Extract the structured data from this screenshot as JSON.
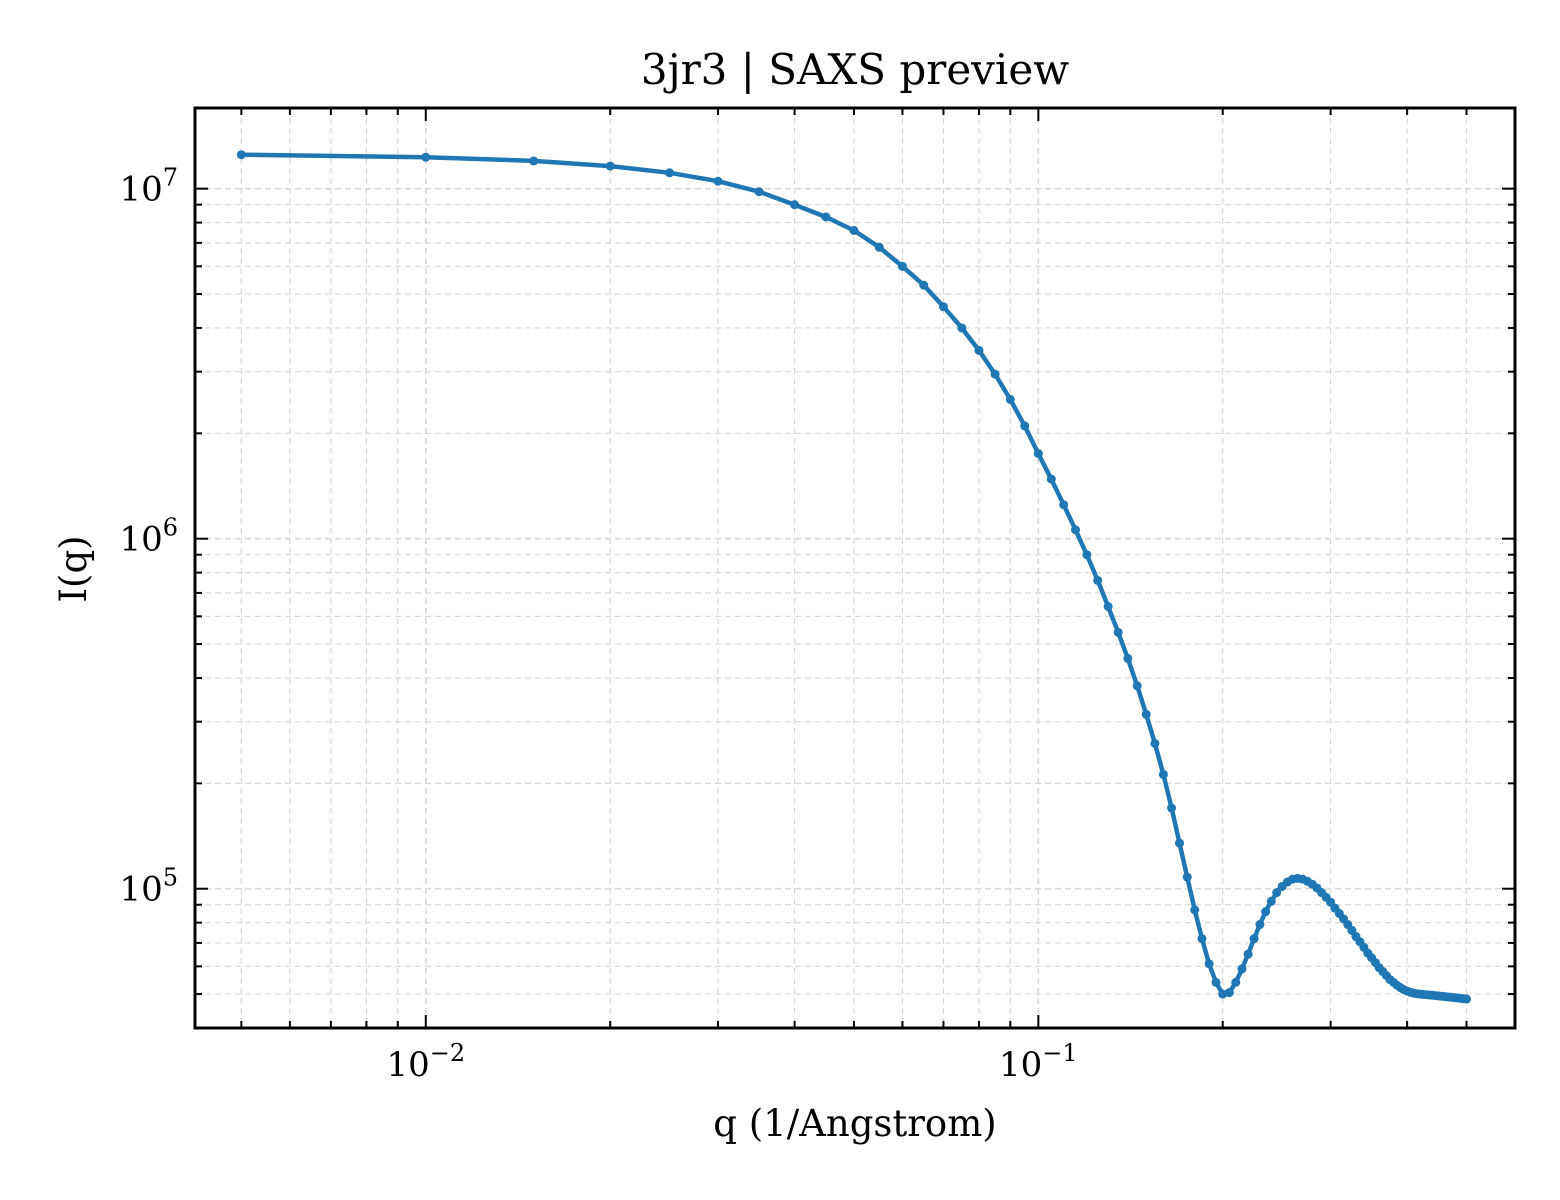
{
  "chart_data": {
    "type": "line",
    "title": "3jr3 | SAXS preview",
    "xlabel": "q (1/Angstrom)",
    "ylabel": "I(q)",
    "xscale": "log",
    "yscale": "log",
    "xlim": [
      0.0042,
      0.6
    ],
    "ylim": [
      40000,
      17000000
    ],
    "grid": true,
    "x_ticks": [
      {
        "value": 0.01,
        "base": "10",
        "exp": "−2"
      },
      {
        "value": 0.1,
        "base": "10",
        "exp": "−1"
      }
    ],
    "y_ticks": [
      {
        "value": 100000,
        "base": "10",
        "exp": "5"
      },
      {
        "value": 1000000,
        "base": "10",
        "exp": "6"
      },
      {
        "value": 10000000,
        "base": "10",
        "exp": "7"
      }
    ],
    "series": [
      {
        "color": "#1f77b4",
        "marker": "dot",
        "x": [
          0.005,
          0.01,
          0.015,
          0.02,
          0.025,
          0.03,
          0.035,
          0.04,
          0.045,
          0.05,
          0.055,
          0.06,
          0.065,
          0.07,
          0.075,
          0.08,
          0.085,
          0.09,
          0.095,
          0.1,
          0.105,
          0.11,
          0.115,
          0.12,
          0.125,
          0.13,
          0.135,
          0.14,
          0.145,
          0.15,
          0.155,
          0.16,
          0.165,
          0.17,
          0.175,
          0.18,
          0.185,
          0.19,
          0.195,
          0.2,
          0.205,
          0.21,
          0.215,
          0.22,
          0.225,
          0.23,
          0.235,
          0.24,
          0.245,
          0.25,
          0.255,
          0.26,
          0.265,
          0.27,
          0.275,
          0.28,
          0.285,
          0.29,
          0.295,
          0.3,
          0.305,
          0.31,
          0.315,
          0.32,
          0.325,
          0.33,
          0.335,
          0.34,
          0.345,
          0.35,
          0.355,
          0.36,
          0.365,
          0.37,
          0.375,
          0.38,
          0.385,
          0.39,
          0.395,
          0.4,
          0.405,
          0.41,
          0.415,
          0.42,
          0.425,
          0.43,
          0.435,
          0.44,
          0.445,
          0.45,
          0.455,
          0.46,
          0.465,
          0.47,
          0.475,
          0.48,
          0.485,
          0.49,
          0.495,
          0.5
        ],
        "y": [
          12500000,
          12300000,
          12000000,
          11600000,
          11100000,
          10500000,
          9800000,
          9000000,
          8300000,
          7600000,
          6800000,
          6000000,
          5300000,
          4600000,
          4000000,
          3450000,
          2950000,
          2500000,
          2100000,
          1750000,
          1480000,
          1250000,
          1060000,
          900000,
          760000,
          640000,
          540000,
          455000,
          380000,
          315000,
          260000,
          212000,
          170000,
          135000,
          108000,
          87000,
          72000,
          61000,
          54000,
          50000,
          50500,
          54000,
          59000,
          65000,
          72000,
          79000,
          86000,
          92000,
          97500,
          101500,
          104500,
          106500,
          107000,
          106500,
          105000,
          103000,
          100500,
          97500,
          94500,
          91500,
          88000,
          85000,
          82000,
          79000,
          76000,
          73000,
          70500,
          68000,
          65500,
          63500,
          61500,
          59500,
          58000,
          56500,
          55000,
          54000,
          53000,
          52200,
          51500,
          51000,
          50600,
          50300,
          50100,
          50000,
          49900,
          49800,
          49700,
          49600,
          49500,
          49400,
          49300,
          49200,
          49100,
          49000,
          48900,
          48800,
          48700,
          48600,
          48500,
          48400
        ]
      }
    ]
  }
}
